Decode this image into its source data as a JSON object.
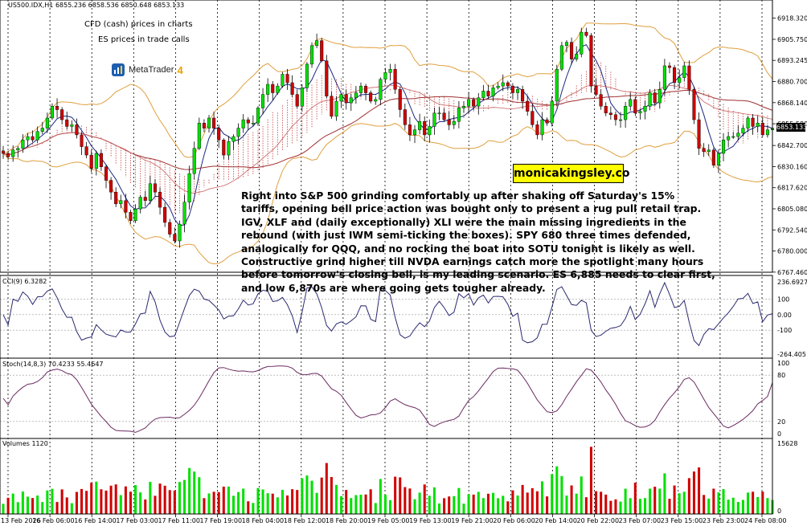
{
  "header": {
    "symbol_line": "US500.IDX,H1  6855.236 6858.536 6850.648 6853.133",
    "cci_label": "CCI(9) 6.3282",
    "stoch_label": "Stoch(14,8,3) 70.4233 55.4647",
    "volume_label": "Volumes 1120"
  },
  "notes": {
    "line1": "CFD (cash) prices in charts",
    "line2": "ES prices in trade calls",
    "platform_name": "MetaTrader",
    "platform_version": "4",
    "site": "monicakingsley.co",
    "current_price": "6853.133"
  },
  "commentary": "Right into S&P 500 grinding comfortably up after shaking off Saturday's 15% tariffs, opening bell price action was bought only to present a rug pull retail trap. IGV, XLF and (daily exceptionally) XLI were the main missing ingredients in the rebound (with just IWM semi-ticking the boxes). SPY 680 three times defended, analogically for QQQ, and no rocking the boat into SOTU tonight is likely as well. Constructive grind higher till NVDA earnings catch more the spotlight many hours before tomorrow's closing bell, is my leading scenario. ES 6,885 needs to clear first, and low 6,870s are where going gets tougher already.",
  "colors": {
    "bull": "#00e000",
    "bear": "#d00000",
    "cloud": "#c04040",
    "bands": "#e0a040",
    "fast_ma": "#1c2a80",
    "slow_ma": "#a03030",
    "oscillator": "#2a2a70",
    "stoch": "#6a2a60"
  },
  "chart_data": [
    {
      "type": "candlestick",
      "panel": "price",
      "symbol": "US500.IDX",
      "timeframe": "H1",
      "ylim": [
        6767.4,
        6921.0
      ],
      "y_ticks": [
        "6918.320",
        "6905.750",
        "6893.245",
        "6880.700",
        "6868.140",
        "6855.580",
        "6842.700",
        "6830.160",
        "6817.620",
        "6805.080",
        "6792.540",
        "6780.000",
        "6767.460"
      ],
      "x_ticks": [
        "13 Feb 2026",
        "16 Feb 06:00",
        "16 Feb 14:00",
        "17 Feb 03:00",
        "17 Feb 11:00",
        "17 Feb 19:00",
        "18 Feb 04:00",
        "18 Feb 12:00",
        "18 Feb 20:00",
        "19 Feb 05:00",
        "19 Feb 13:00",
        "19 Feb 21:00",
        "20 Feb 06:00",
        "20 Feb 14:00",
        "20 Feb 22:00",
        "23 Feb 07:00",
        "23 Feb 15:00",
        "23 Feb 23:00",
        "24 Feb 08:00"
      ],
      "closes": [
        6838,
        6836,
        6840,
        6841,
        6846,
        6848,
        6846,
        6851,
        6853,
        6859,
        6866,
        6864,
        6858,
        6854,
        6855,
        6849,
        6842,
        6837,
        6829,
        6838,
        6830,
        6822,
        6815,
        6808,
        6810,
        6803,
        6798,
        6805,
        6812,
        6810,
        6820,
        6815,
        6806,
        6797,
        6790,
        6786,
        6796,
        6809,
        6826,
        6841,
        6856,
        6853,
        6859,
        6853,
        6846,
        6837,
        6845,
        6848,
        6853,
        6858,
        6856,
        6856,
        6865,
        6873,
        6879,
        6874,
        6878,
        6885,
        6880,
        6873,
        6866,
        6877,
        6891,
        6902,
        6905,
        6893,
        6872,
        6860,
        6869,
        6873,
        6868,
        6871,
        6874,
        6878,
        6874,
        6869,
        6870,
        6882,
        6886,
        6888,
        6876,
        6864,
        6855,
        6849,
        6852,
        6857,
        6849,
        6854,
        6862,
        6862,
        6858,
        6855,
        6857,
        6865,
        6866,
        6870,
        6866,
        6871,
        6875,
        6872,
        6877,
        6878,
        6880,
        6878,
        6874,
        6876,
        6869,
        6863,
        6855,
        6849,
        6858,
        6856,
        6869,
        6888,
        6902,
        6904,
        6894,
        6897,
        6910,
        6908,
        6878,
        6873,
        6866,
        6862,
        6861,
        6858,
        6858,
        6866,
        6870,
        6862,
        6863,
        6866,
        6874,
        6868,
        6876,
        6890,
        6889,
        6880,
        6883,
        6890,
        6876,
        6858,
        6841,
        6839,
        6840,
        6831,
        6838,
        6846,
        6848,
        6848,
        6850,
        6853,
        6859,
        6854,
        6856,
        6849,
        6852,
        6853
      ],
      "overlays": [
        "Ichimoku cloud",
        "Bollinger bands",
        "fast moving average",
        "slow moving average"
      ]
    },
    {
      "type": "line",
      "panel": "indicator",
      "name": "CCI(9)",
      "ylim": [
        -264.4051,
        236.6927
      ],
      "y_ticks": [
        "236.6927",
        "100",
        "0.00",
        "-100",
        "-264.4051"
      ],
      "last_value": 6.3282
    },
    {
      "type": "line",
      "panel": "indicator",
      "name": "Stoch(14,8,3)",
      "ylim": [
        0,
        100
      ],
      "y_ticks": [
        "100",
        "80",
        "20",
        "0"
      ],
      "last_values": [
        70.4233,
        55.4647
      ]
    },
    {
      "type": "bar",
      "panel": "volume",
      "name": "Volumes",
      "ylim": [
        0,
        15628
      ],
      "y_ticks": [
        "15628",
        "0"
      ],
      "last_value": 1120
    }
  ]
}
